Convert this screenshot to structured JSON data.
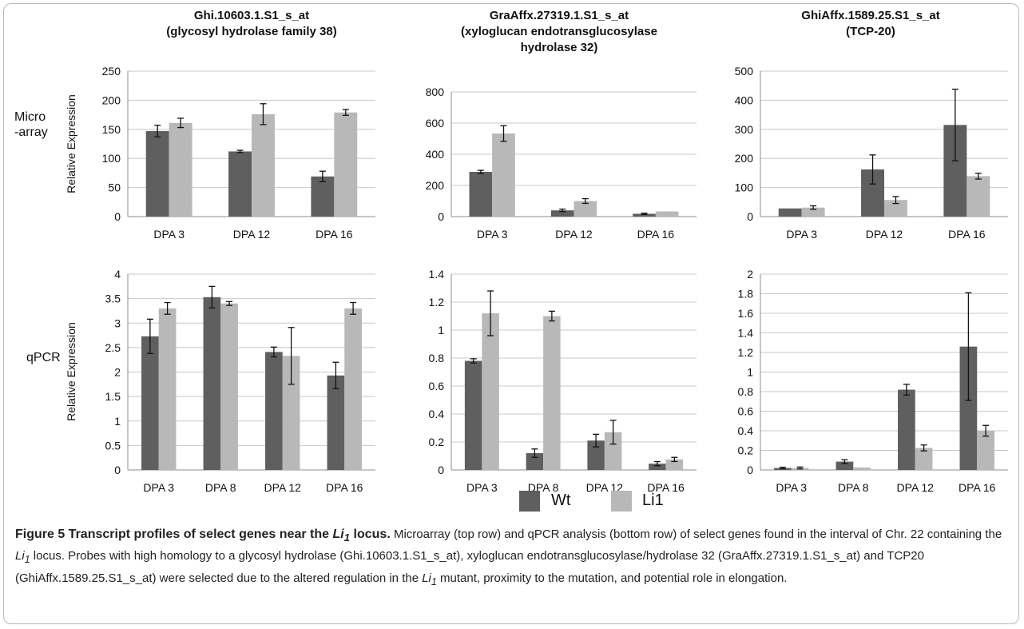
{
  "row_labels": {
    "microarray_line1": "Micro",
    "microarray_line2": "-array",
    "qpcr": "qPCR"
  },
  "colors": {
    "wt": "#5f5f5f",
    "li1": "#b8b8b8",
    "grid": "#c8c8c8",
    "axis": "#8c8c8c",
    "frame": "#b9b9b9"
  },
  "legend": {
    "wt": "Wt",
    "li1": "Li1"
  },
  "caption": {
    "title_part1": "Figure 5 Transcript profiles of select genes near the ",
    "title_gene": "Li",
    "title_sub": "1",
    "title_part2": " locus.",
    "body_part1": " Microarray (top row) and qPCR analysis (bottom row) of select genes found in the interval of Chr. 22 containing the ",
    "body_gene1": "Li",
    "body_sub1": "1",
    "body_part2": " locus. Probes with high homology to a glycosyl hydrolase (Ghi.10603.1.S1_s_at), xyloglucan endotransglucosylase/hydrolase 32 (GraAffx.27319.1.S1_s_at) and TCP20 (GhiAffx.1589.25.S1_s_at) were selected due to the altered regulation in the ",
    "body_gene2": "Li",
    "body_sub2": "1",
    "body_part3": " mutant, proximity to the mutation, and potential role in elongation."
  },
  "chart_data": [
    {
      "type": "bar",
      "row": "Microarray",
      "title_lines": [
        "Ghi.10603.1.S1_s_at",
        "(glycosyl hydrolase family 38)"
      ],
      "ylabel": "Relative Expression",
      "ylim": [
        0,
        250
      ],
      "yticks": [
        0,
        50,
        100,
        150,
        200,
        250
      ],
      "categories": [
        "DPA 3",
        "DPA 12",
        "DPA 16"
      ],
      "series": [
        {
          "name": "Wt",
          "values": [
            147,
            112,
            69
          ],
          "errors": [
            10,
            2,
            9
          ]
        },
        {
          "name": "Li1",
          "values": [
            161,
            176,
            179
          ],
          "errors": [
            8,
            18,
            5
          ]
        }
      ],
      "grid": true
    },
    {
      "type": "bar",
      "row": "Microarray",
      "title_lines": [
        "GraAffx.27319.1.S1_s_at",
        "(xyloglucan endotransglucosylase",
        "hydrolase 32)"
      ],
      "ylabel": "",
      "ylim": [
        0,
        800
      ],
      "yticks": [
        0,
        200,
        400,
        600,
        800
      ],
      "categories": [
        "DPA 3",
        "DPA 12",
        "DPA 16"
      ],
      "series": [
        {
          "name": "Wt",
          "values": [
            287,
            40,
            18
          ],
          "errors": [
            10,
            8,
            4
          ]
        },
        {
          "name": "Li1",
          "values": [
            533,
            100,
            33
          ],
          "errors": [
            50,
            15,
            0
          ]
        }
      ],
      "grid": true
    },
    {
      "type": "bar",
      "row": "Microarray",
      "title_lines": [
        "GhiAffx.1589.25.S1_s_at",
        "(TCP-20)"
      ],
      "ylabel": "",
      "ylim": [
        0,
        500
      ],
      "yticks": [
        0,
        100,
        200,
        300,
        400,
        500
      ],
      "categories": [
        "DPA 3",
        "DPA 12",
        "DPA 16"
      ],
      "series": [
        {
          "name": "Wt",
          "values": [
            28,
            162,
            315
          ],
          "errors": [
            0,
            50,
            123
          ]
        },
        {
          "name": "Li1",
          "values": [
            31,
            57,
            139
          ],
          "errors": [
            6,
            12,
            10
          ]
        }
      ],
      "grid": true
    },
    {
      "type": "bar",
      "row": "qPCR",
      "title_lines": [],
      "ylabel": "Relative Expression",
      "ylim": [
        0,
        4
      ],
      "yticks": [
        0,
        0.5,
        1,
        1.5,
        2,
        2.5,
        3,
        3.5,
        4
      ],
      "categories": [
        "DPA 3",
        "DPA 8",
        "DPA 12",
        "DPA 16"
      ],
      "series": [
        {
          "name": "Wt",
          "values": [
            2.73,
            3.53,
            2.41,
            1.93
          ],
          "errors": [
            0.35,
            0.22,
            0.1,
            0.27
          ]
        },
        {
          "name": "Li1",
          "values": [
            3.3,
            3.4,
            2.33,
            3.3
          ],
          "errors": [
            0.12,
            0.04,
            0.58,
            0.12
          ]
        }
      ],
      "grid": true
    },
    {
      "type": "bar",
      "row": "qPCR",
      "title_lines": [],
      "ylabel": "",
      "ylim": [
        0,
        1.4
      ],
      "yticks": [
        0,
        0.2,
        0.4,
        0.6,
        0.8,
        1,
        1.2,
        1.4
      ],
      "categories": [
        "DPA 3",
        "DPA 8",
        "DPA 12",
        "DPA 16"
      ],
      "series": [
        {
          "name": "Wt",
          "values": [
            0.78,
            0.12,
            0.21,
            0.045
          ],
          "errors": [
            0.015,
            0.03,
            0.045,
            0.015
          ]
        },
        {
          "name": "Li1",
          "values": [
            1.12,
            1.1,
            0.27,
            0.075
          ],
          "errors": [
            0.16,
            0.035,
            0.085,
            0.015
          ]
        }
      ],
      "grid": true
    },
    {
      "type": "bar",
      "row": "qPCR",
      "title_lines": [],
      "ylabel": "",
      "ylim": [
        0,
        2
      ],
      "yticks": [
        0,
        0.2,
        0.4,
        0.6,
        0.8,
        1,
        1.2,
        1.4,
        1.6,
        1.8,
        2
      ],
      "categories": [
        "DPA 3",
        "DPA 8",
        "DPA 12",
        "DPA 16"
      ],
      "series": [
        {
          "name": "Wt",
          "values": [
            0.02,
            0.085,
            0.82,
            1.26
          ],
          "errors": [
            0.008,
            0.02,
            0.055,
            0.55
          ]
        },
        {
          "name": "Li1",
          "values": [
            0.02,
            0.025,
            0.225,
            0.4
          ],
          "errors": [
            0.01,
            0,
            0.03,
            0.055
          ]
        }
      ],
      "grid": true
    }
  ]
}
